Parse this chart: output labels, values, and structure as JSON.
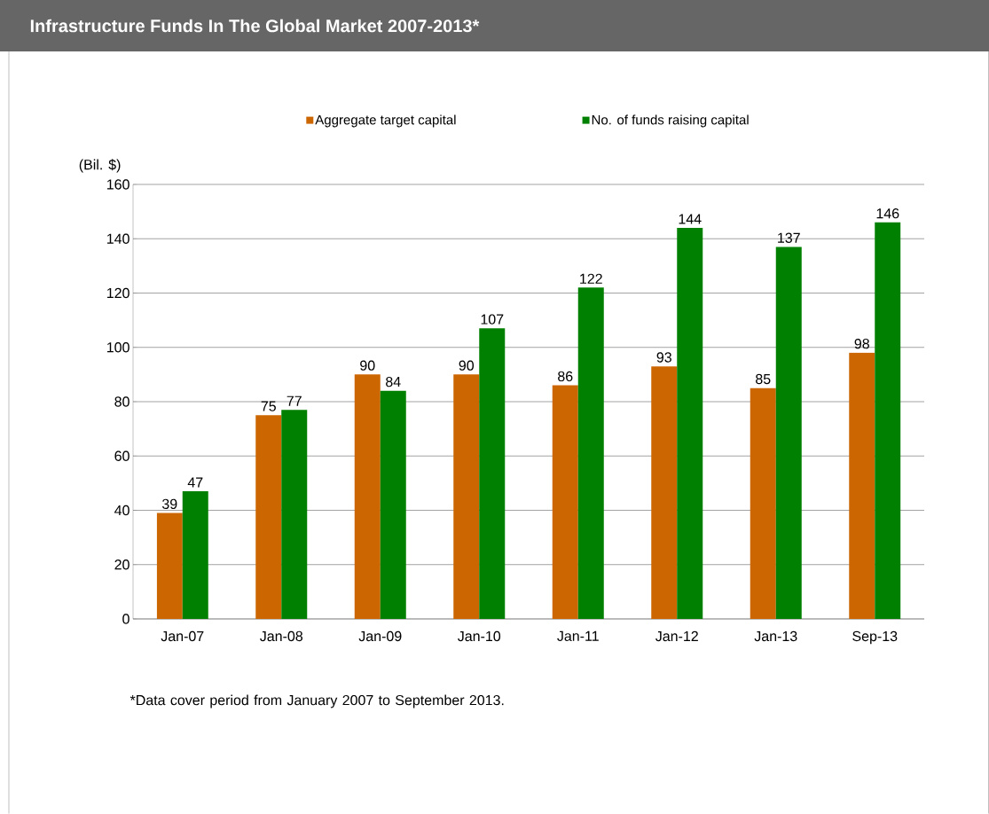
{
  "chart_data": {
    "type": "bar",
    "title": "Infrastructure  Funds  In The Global Market 2007-2013*",
    "ylabel": "(Bil. $)",
    "categories": [
      "Jan-07",
      "Jan-08",
      "Jan-09",
      "Jan-10",
      "Jan-11",
      "Jan-12",
      "Jan-13",
      "Sep-13"
    ],
    "series": [
      {
        "name": "Aggregate target capital",
        "color": "#cc6600",
        "values": [
          39,
          75,
          90,
          90,
          86,
          93,
          85,
          98
        ]
      },
      {
        "name": "No. of funds raising capital",
        "color": "#008000",
        "values": [
          47,
          77,
          84,
          107,
          122,
          144,
          137,
          146
        ]
      }
    ],
    "ylim": [
      0,
      160
    ],
    "yticks": [
      0,
      20,
      40,
      60,
      80,
      100,
      120,
      140,
      160
    ],
    "grid": "y",
    "legend": "top",
    "data_labels": true,
    "annotations": [
      "*Data cover period from January 2007  to September 2013."
    ]
  }
}
